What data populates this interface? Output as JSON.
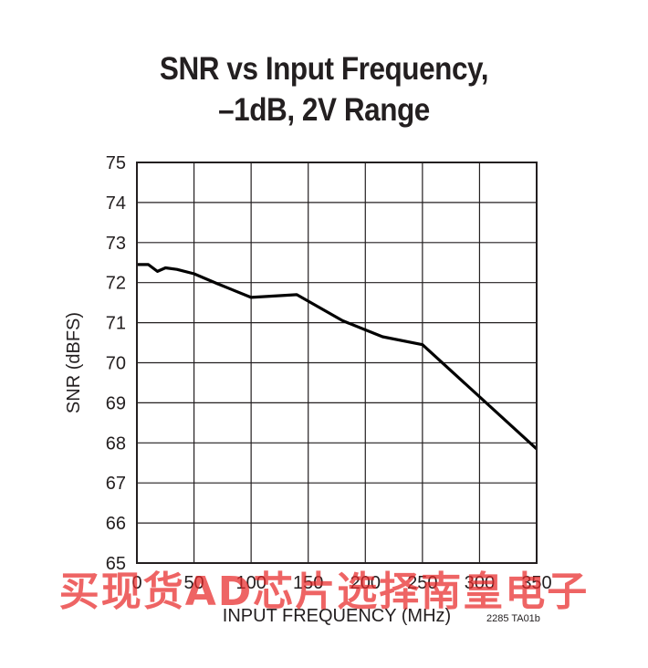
{
  "chart_data": {
    "type": "line",
    "title": "SNR vs Input Frequency,",
    "subtitle": "–1dB, 2V Range",
    "xlabel": "INPUT FREQUENCY (MHz)",
    "ylabel": "SNR (dBFS)",
    "xlim": [
      0,
      350
    ],
    "ylim": [
      65,
      75
    ],
    "x_ticks": [
      0,
      50,
      100,
      150,
      200,
      250,
      300,
      350
    ],
    "y_ticks": [
      65,
      66,
      67,
      68,
      69,
      70,
      71,
      72,
      73,
      74,
      75
    ],
    "grid": true,
    "series": [
      {
        "x": [
          0,
          10,
          18,
          25,
          35,
          50,
          70,
          100,
          140,
          180,
          215,
          250,
          350
        ],
        "y": [
          72.45,
          72.45,
          72.28,
          72.37,
          72.33,
          72.22,
          71.98,
          71.63,
          71.7,
          71.05,
          70.65,
          70.45,
          67.85
        ]
      }
    ]
  },
  "figure_code": "2285 TA01b",
  "watermark": "买现货AD芯片选择南皇电子",
  "colors": {
    "line": "#000000",
    "grid": "#231f20",
    "watermark": "#e82828"
  }
}
